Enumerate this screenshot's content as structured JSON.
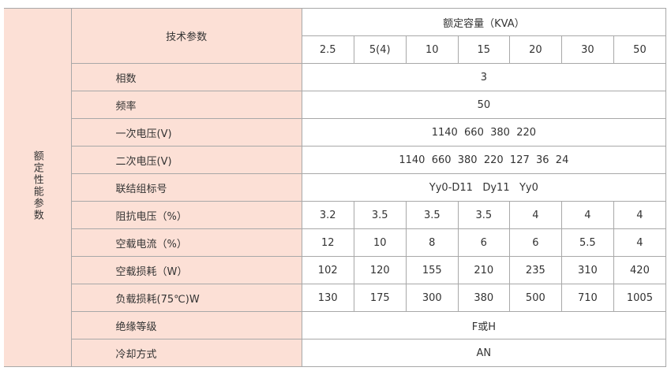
{
  "side_label": "额定性能参数",
  "header": {
    "param_label": "技术参数",
    "capacity_label": "额定容量（KVA）",
    "capacities": [
      "2.5",
      "5(4)",
      "10",
      "15",
      "20",
      "30",
      "50"
    ]
  },
  "rows": [
    {
      "label": "相数",
      "span": "3"
    },
    {
      "label": "频率",
      "span": "50"
    },
    {
      "label": "一次电压(V)",
      "span": "1140  660  380  220"
    },
    {
      "label": "二次电压(V)",
      "span": "1140  660  380  220  127  36  24"
    },
    {
      "label": "联结组标号",
      "span": "Yy0-D11   Dy11   Yy0"
    },
    {
      "label": "阻抗电压（%）",
      "values": [
        "3.2",
        "3.5",
        "3.5",
        "3.5",
        "4",
        "4",
        "4"
      ]
    },
    {
      "label": "空载电流（%）",
      "values": [
        "12",
        "10",
        "8",
        "6",
        "6",
        "5.5",
        "4"
      ]
    },
    {
      "label": "空载损耗（W）",
      "values": [
        "102",
        "120",
        "155",
        "210",
        "235",
        "310",
        "420"
      ]
    },
    {
      "label": "负载损耗(75℃)W",
      "values": [
        "130",
        "175",
        "300",
        "380",
        "500",
        "710",
        "1005"
      ]
    },
    {
      "label": "绝缘等级",
      "span": "F或H"
    },
    {
      "label": "冷却方式",
      "span": "AN"
    }
  ],
  "colors": {
    "label_bg": "#fce0d6",
    "border": "#a8a8a8"
  }
}
